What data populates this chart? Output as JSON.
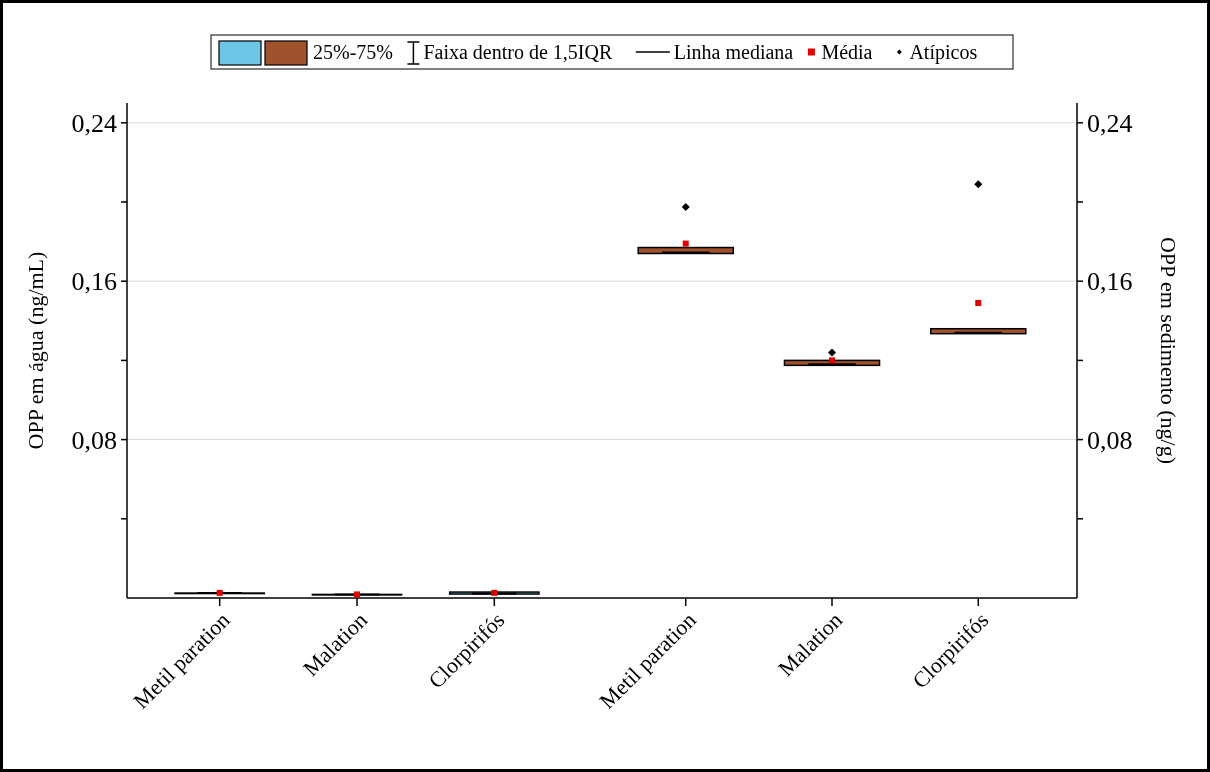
{
  "chart_data": [
    {
      "type": "box",
      "categories": [
        "Metil paration",
        "Malation",
        "Clorpirifós"
      ],
      "ylabel": "OPP em água (ng/mL)",
      "ylim": [
        0,
        0.25
      ],
      "yticks": [
        {
          "value": 0.04,
          "label": null
        },
        {
          "value": 0.08,
          "label": "0,08"
        },
        {
          "value": 0.12,
          "label": null
        },
        {
          "value": 0.16,
          "label": "0,16"
        },
        {
          "value": 0.2,
          "label": null
        },
        {
          "value": 0.24,
          "label": "0,24"
        }
      ],
      "grid": "y",
      "legend": "top",
      "annotations": [
        "Faixa dentro de 1,5IQR",
        "Linha mediana"
      ],
      "series": [
        {
          "type": "box",
          "color": "#6ec6e6",
          "boxes": [
            {
              "low": 0.0025,
              "q1": 0.0025,
              "median": 0.0025,
              "q3": 0.0025,
              "high": 0.0025
            },
            {
              "low": 0.0018,
              "q1": 0.0018,
              "median": 0.0018,
              "q3": 0.0018,
              "high": 0.0018
            },
            {
              "low": 0.002,
              "q1": 0.002,
              "median": 0.0023,
              "q3": 0.003,
              "high": 0.003
            }
          ]
        },
        {
          "type": "scatter",
          "color": "#e00000",
          "marker": "square",
          "x": [
            "Metil paration",
            "Malation",
            "Clorpirifós"
          ],
          "values": [
            0.0026,
            0.0018,
            0.0026
          ]
        }
      ]
    },
    {
      "type": "box",
      "categories": [
        "Metil paration",
        "Malation",
        "Clorpirifós"
      ],
      "y2label": "OPP em sedimento (ng/g)",
      "y2lim": [
        0,
        0.25
      ],
      "y2ticks": [
        {
          "value": 0.04,
          "label": null
        },
        {
          "value": 0.08,
          "label": "0,08"
        },
        {
          "value": 0.12,
          "label": null
        },
        {
          "value": 0.16,
          "label": "0,16"
        },
        {
          "value": 0.2,
          "label": null
        },
        {
          "value": 0.24,
          "label": "0,24"
        }
      ],
      "grid": "y",
      "legend": "top",
      "series": [
        {
          "type": "box",
          "axis": "y2",
          "name": "25%-75%",
          "color": "#a0522d",
          "boxes": [
            {
              "low": 0.174,
              "q1": 0.174,
              "median": 0.1745,
              "q3": 0.177,
              "high": 0.177
            },
            {
              "low": 0.1175,
              "q1": 0.1175,
              "median": 0.118,
              "q3": 0.12,
              "high": 0.12
            },
            {
              "low": 0.1335,
              "q1": 0.1335,
              "median": 0.134,
              "q3": 0.136,
              "high": 0.136
            }
          ]
        },
        {
          "type": "scatter",
          "axis": "y2",
          "name": "Média",
          "color": "#e00000",
          "marker": "square",
          "x": [
            "Metil paration",
            "Malation",
            "Clorpirifós"
          ],
          "values": [
            0.179,
            0.12,
            0.149
          ]
        },
        {
          "type": "scatter",
          "axis": "y2",
          "name": "Atípicos",
          "color": "#000000",
          "marker": "diamond",
          "x": [
            "Metil paration",
            "Malation",
            "Clorpirifós"
          ],
          "values": [
            0.1975,
            0.124,
            0.209
          ]
        }
      ]
    }
  ]
}
